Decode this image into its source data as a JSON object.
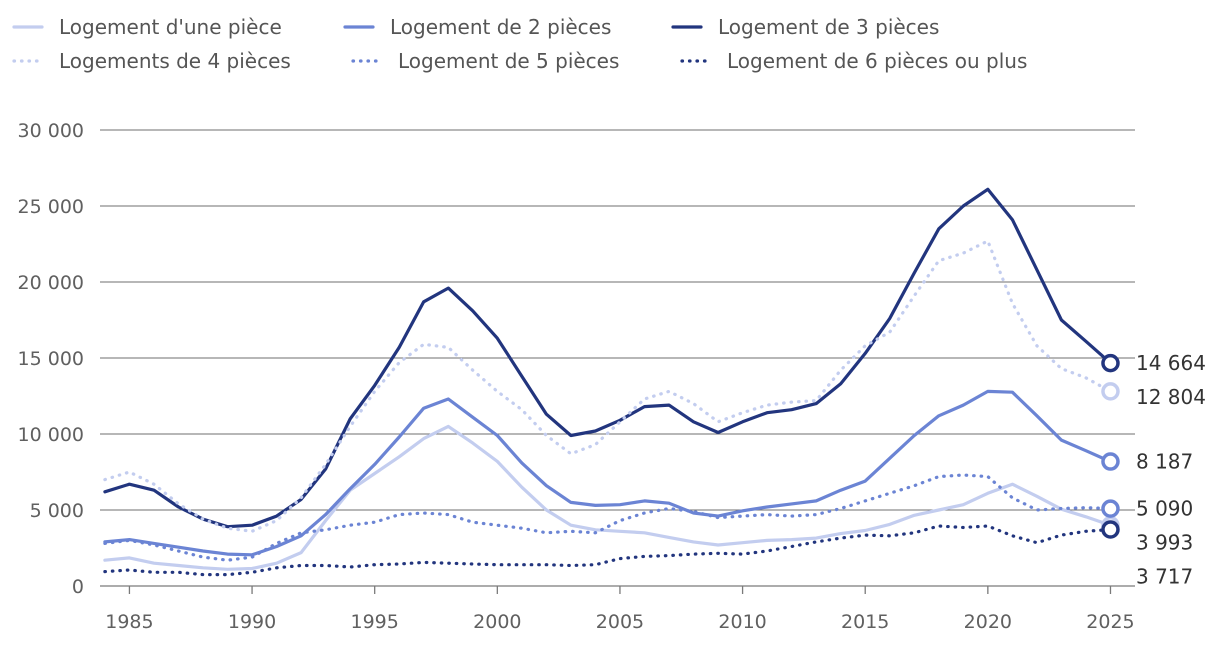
{
  "chart_data": {
    "type": "line",
    "title": "",
    "xlabel": "",
    "ylabel": "",
    "xlim": [
      1983.8,
      2026
    ],
    "ylim": [
      0,
      30000
    ],
    "grid": true,
    "legend_position": "top",
    "x_ticks": [
      1985,
      1990,
      1995,
      2000,
      2005,
      2010,
      2015,
      2020,
      2025
    ],
    "y_ticks": [
      0,
      5000,
      10000,
      15000,
      20000,
      25000,
      30000
    ],
    "x_tick_labels": [
      "1985",
      "1990",
      "1995",
      "2000",
      "2005",
      "2010",
      "2015",
      "2020",
      "2025"
    ],
    "y_tick_labels": [
      "0",
      "5 000",
      "10 000",
      "15 000",
      "20 000",
      "25 000",
      "30 000"
    ],
    "x": [
      1984,
      1985,
      1986,
      1987,
      1988,
      1989,
      1990,
      1991,
      1992,
      1993,
      1994,
      1995,
      1996,
      1997,
      1998,
      1999,
      2000,
      2001,
      2002,
      2003,
      2004,
      2005,
      2006,
      2007,
      2008,
      2009,
      2010,
      2011,
      2012,
      2013,
      2014,
      2015,
      2016,
      2017,
      2018,
      2019,
      2020,
      2021,
      2022,
      2023,
      2024,
      2025
    ],
    "series": [
      {
        "name": "Logement d'une pièce",
        "color": "#c3cdef",
        "dash": "solid",
        "values": [
          1700,
          1850,
          1500,
          1350,
          1200,
          1100,
          1150,
          1500,
          2200,
          4300,
          6300,
          7400,
          8500,
          9700,
          10500,
          9400,
          8200,
          6500,
          5000,
          4000,
          3700,
          3600,
          3500,
          3200,
          2900,
          2700,
          2850,
          3000,
          3050,
          3150,
          3450,
          3650,
          4050,
          4650,
          5000,
          5350,
          6100,
          6700,
          5900,
          5050,
          4550,
          3993
        ],
        "end_label": "3 993"
      },
      {
        "name": "Logement de 2 pièces",
        "color": "#6b84d4",
        "dash": "solid",
        "values": [
          2900,
          3050,
          2800,
          2550,
          2300,
          2100,
          2050,
          2600,
          3300,
          4700,
          6400,
          8000,
          9800,
          11700,
          12300,
          11100,
          9900,
          8100,
          6600,
          5500,
          5300,
          5350,
          5600,
          5450,
          4800,
          4600,
          4950,
          5200,
          5400,
          5600,
          6300,
          6900,
          8400,
          9900,
          11200,
          11900,
          12800,
          12750,
          11200,
          9600,
          8900,
          8187
        ],
        "end_label": "8 187"
      },
      {
        "name": "Logement de 3 pièces",
        "color": "#22357e",
        "dash": "solid",
        "values": [
          6200,
          6700,
          6300,
          5200,
          4400,
          3900,
          4000,
          4600,
          5700,
          7700,
          11000,
          13200,
          15700,
          18700,
          19600,
          18100,
          16300,
          13800,
          11300,
          9900,
          10200,
          10900,
          11800,
          11900,
          10800,
          10100,
          10800,
          11400,
          11600,
          12000,
          13300,
          15300,
          17600,
          20600,
          23500,
          25000,
          26100,
          24100,
          20800,
          17500,
          16100,
          14664
        ],
        "end_label": "14 664"
      },
      {
        "name": "Logements de 4 pièces",
        "color": "#c3cdef",
        "dash": "dotted",
        "values": [
          7000,
          7500,
          6700,
          5400,
          4400,
          3800,
          3600,
          4300,
          5800,
          8000,
          10500,
          12800,
          14700,
          15900,
          15700,
          14200,
          12800,
          11600,
          9900,
          8700,
          9300,
          10800,
          12300,
          12800,
          12000,
          10800,
          11400,
          11900,
          12100,
          12200,
          14200,
          15800,
          16700,
          19100,
          21400,
          21900,
          22700,
          18600,
          15800,
          14300,
          13700,
          12804
        ],
        "end_label": "12 804"
      },
      {
        "name": "Logement de 5 pièces",
        "color": "#6b84d4",
        "dash": "dotted",
        "values": [
          2800,
          3000,
          2700,
          2300,
          1900,
          1700,
          1900,
          2800,
          3500,
          3700,
          4000,
          4200,
          4700,
          4800,
          4700,
          4200,
          4000,
          3800,
          3500,
          3600,
          3500,
          4300,
          4800,
          5100,
          4900,
          4500,
          4600,
          4700,
          4600,
          4700,
          5100,
          5600,
          6100,
          6600,
          7200,
          7300,
          7200,
          5800,
          5000,
          5100,
          5150,
          5090
        ],
        "end_label": "5 090"
      },
      {
        "name": "Logement de 6 pièces ou plus",
        "color": "#22357e",
        "dash": "dotted",
        "values": [
          950,
          1050,
          900,
          900,
          750,
          750,
          900,
          1200,
          1350,
          1350,
          1250,
          1400,
          1450,
          1550,
          1500,
          1450,
          1400,
          1400,
          1400,
          1350,
          1400,
          1800,
          1950,
          2000,
          2100,
          2150,
          2100,
          2300,
          2600,
          2900,
          3150,
          3350,
          3300,
          3500,
          3950,
          3850,
          3950,
          3300,
          2850,
          3350,
          3600,
          3717
        ],
        "end_label": "3 717"
      }
    ]
  }
}
